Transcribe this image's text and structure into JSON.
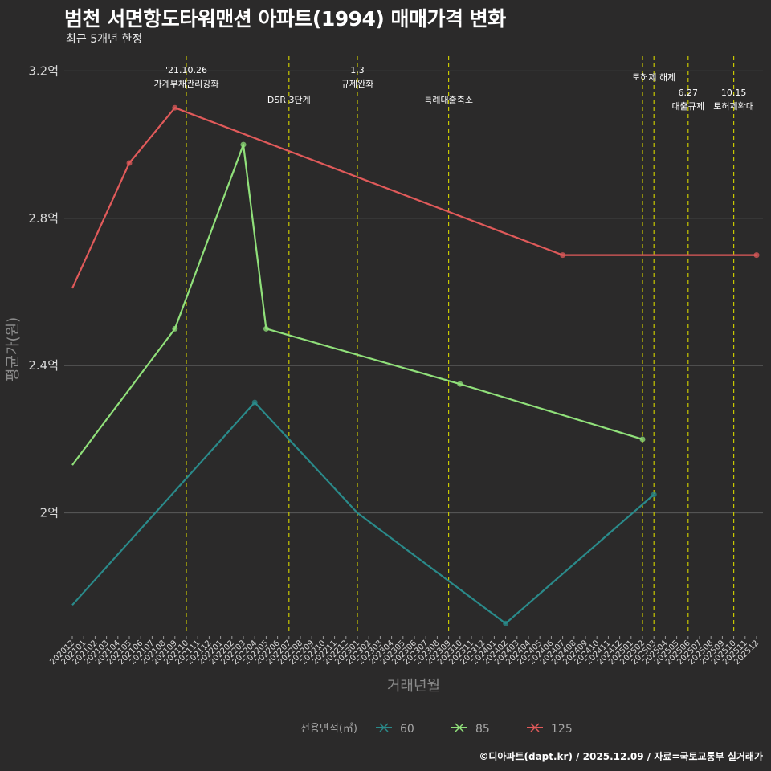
{
  "header": {
    "title": "범천 서면항도타워맨션 아파트(1994) 매매가격 변화",
    "subtitle": "최근 5개년 한정"
  },
  "caption": "©디아파트(dapt.kr) / 2025.12.09 / 자료=국토교통부 실거래가",
  "colors": {
    "background": "#2b2a2a",
    "grid": "#5a5a5a",
    "event_line": "#c8c800",
    "s60": "#2a8a8a",
    "s85": "#90e07a",
    "s125": "#e05a5a"
  },
  "chart_data": {
    "type": "line",
    "title": "범천 서면항도타워맨션 아파트(1994) 매매가격 변화",
    "xlabel": "거래년월",
    "ylabel": "평균가(원)",
    "ylim": [
      1.67,
      3.24
    ],
    "y_ticks": [
      2.0,
      2.4,
      2.8,
      3.2
    ],
    "y_tick_labels": [
      "2억",
      "2.4억",
      "2.8억",
      "3.2억"
    ],
    "x_range": [
      0,
      60
    ],
    "x_tick_labels": [
      "202012",
      "202101",
      "202102",
      "202103",
      "202104",
      "202105",
      "202106",
      "202107",
      "202108",
      "202109",
      "202110",
      "202111",
      "202112",
      "202201",
      "202202",
      "202203",
      "202204",
      "202205",
      "202206",
      "202207",
      "202208",
      "202209",
      "202210",
      "202211",
      "202212",
      "202301",
      "202302",
      "202303",
      "202304",
      "202305",
      "202306",
      "202307",
      "202308",
      "202309",
      "202310",
      "202311",
      "202312",
      "202401",
      "202402",
      "202403",
      "202404",
      "202405",
      "202406",
      "202407",
      "202408",
      "202409",
      "202410",
      "202411",
      "202412",
      "202501",
      "202502",
      "202503",
      "202504",
      "202505",
      "202506",
      "202507",
      "202508",
      "202509",
      "202510",
      "202511",
      "202512"
    ],
    "legend_title": "전용면적(㎡)",
    "legend_position": "bottom",
    "series": [
      {
        "name": "60",
        "color": "#2a8a8a",
        "points": [
          {
            "x": 0,
            "y": 1.75,
            "marker": false
          },
          {
            "x": 16,
            "y": 2.3,
            "marker": true
          },
          {
            "x": 25,
            "y": 2.0,
            "marker": false
          },
          {
            "x": 38,
            "y": 1.7,
            "marker": true
          },
          {
            "x": 51,
            "y": 2.05,
            "marker": true
          }
        ]
      },
      {
        "name": "85",
        "color": "#90e07a",
        "points": [
          {
            "x": 0,
            "y": 2.13,
            "marker": false
          },
          {
            "x": 9,
            "y": 2.5,
            "marker": true
          },
          {
            "x": 15,
            "y": 3.0,
            "marker": true
          },
          {
            "x": 17,
            "y": 2.5,
            "marker": true
          },
          {
            "x": 34,
            "y": 2.35,
            "marker": true
          },
          {
            "x": 50,
            "y": 2.2,
            "marker": true
          }
        ]
      },
      {
        "name": "125",
        "color": "#e05a5a",
        "points": [
          {
            "x": 0,
            "y": 2.61,
            "marker": false
          },
          {
            "x": 5,
            "y": 2.95,
            "marker": true
          },
          {
            "x": 9,
            "y": 3.1,
            "marker": true
          },
          {
            "x": 43,
            "y": 2.7,
            "marker": true
          },
          {
            "x": 60,
            "y": 2.7,
            "marker": true
          }
        ]
      }
    ],
    "events": [
      {
        "x": 10,
        "lines": [
          "'21.10.26",
          "가계부채관리강화"
        ],
        "row": 0
      },
      {
        "x": 19,
        "lines": [
          "DSR 3단계"
        ],
        "row": 2
      },
      {
        "x": 25,
        "lines": [
          "1.3",
          "규제완화"
        ],
        "row": 0
      },
      {
        "x": 33,
        "lines": [
          "특례대출축소"
        ],
        "row": 2
      },
      {
        "x": 50,
        "lines": [],
        "row": 0
      },
      {
        "x": 51,
        "lines": [
          "토허제 해제"
        ],
        "row": 1
      },
      {
        "x": 54,
        "lines": [
          "6.27",
          "대출규제"
        ],
        "row": 2
      },
      {
        "x": 58,
        "lines": [
          "10.15",
          "토허제확대"
        ],
        "row": 2
      }
    ]
  }
}
